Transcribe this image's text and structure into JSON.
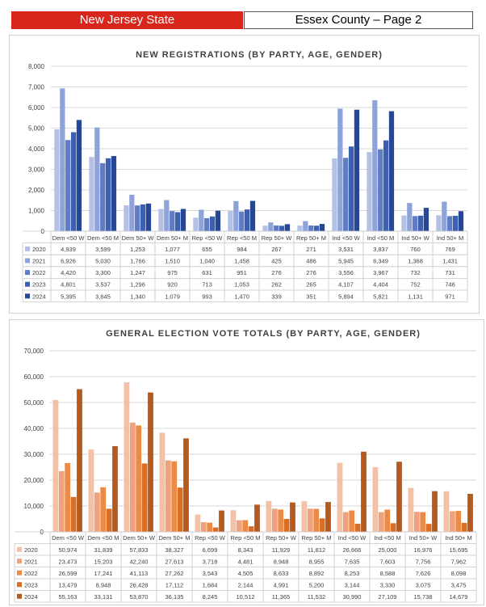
{
  "header": {
    "state": "New Jersey State",
    "county": "Essex County – Page 2"
  },
  "chart_data": [
    {
      "type": "bar",
      "title": "NEW REGISTRATIONS (BY PARTY, AGE, GENDER)",
      "categories": [
        "Dem <50 W",
        "Dem <50 M",
        "Dem 50+ W",
        "Dem 50+ M",
        "Rep <50 W",
        "Rep <50 M",
        "Rep 50+ W",
        "Rep 50+ M",
        "Ind <50 W",
        "Ind <50 M",
        "Ind 50+ W",
        "Ind 50+ M"
      ],
      "yticks": [
        "0",
        "1,000",
        "2,000",
        "3,000",
        "4,000",
        "5,000",
        "6,000",
        "7,000",
        "8,000"
      ],
      "ylim": [
        0,
        8000
      ],
      "series": [
        {
          "name": "2020",
          "color": "#b4c1e4",
          "values": [
            4939,
            3599,
            1253,
            1077,
            655,
            984,
            267,
            271,
            3531,
            3837,
            760,
            769
          ],
          "labels": [
            "4,939",
            "3,599",
            "1,253",
            "1,077",
            "655",
            "984",
            "267",
            "271",
            "3,531",
            "3,837",
            "760",
            "769"
          ]
        },
        {
          "name": "2021",
          "color": "#8ea3da",
          "values": [
            6926,
            5030,
            1766,
            1510,
            1040,
            1458,
            425,
            486,
            5945,
            6349,
            1368,
            1431
          ],
          "labels": [
            "6,926",
            "5,030",
            "1,766",
            "1,510",
            "1,040",
            "1,458",
            "425",
            "486",
            "5,945",
            "6,349",
            "1,368",
            "1,431"
          ]
        },
        {
          "name": "2022",
          "color": "#5f7cc4",
          "values": [
            4420,
            3300,
            1247,
            975,
            631,
            951,
            276,
            276,
            3556,
            3967,
            732,
            731
          ],
          "labels": [
            "4,420",
            "3,300",
            "1,247",
            "975",
            "631",
            "951",
            "276",
            "276",
            "3,556",
            "3,967",
            "732",
            "731"
          ]
        },
        {
          "name": "2023",
          "color": "#3d5fb0",
          "values": [
            4801,
            3537,
            1296,
            920,
            713,
            1053,
            262,
            265,
            4107,
            4404,
            752,
            746
          ],
          "labels": [
            "4,801",
            "3,537",
            "1,296",
            "920",
            "713",
            "1,053",
            "262",
            "265",
            "4,107",
            "4,404",
            "752",
            "746"
          ]
        },
        {
          "name": "2024",
          "color": "#264796",
          "values": [
            5395,
            3645,
            1340,
            1079,
            993,
            1470,
            339,
            351,
            5894,
            5821,
            1131,
            971
          ],
          "labels": [
            "5,395",
            "3,645",
            "1,340",
            "1,079",
            "993",
            "1,470",
            "339",
            "351",
            "5,894",
            "5,821",
            "1,131",
            "971"
          ]
        }
      ]
    },
    {
      "type": "bar",
      "title": "GENERAL ELECTION VOTE TOTALS (BY PARTY, AGE, GENDER)",
      "categories": [
        "Dem <50 W",
        "Dem <50 M",
        "Dem 50+ W",
        "Dem 50+ M",
        "Rep <50 W",
        "Rep <50 M",
        "Rep 50+ W",
        "Rep 50+ M",
        "Ind <50 W",
        "Ind <50 M",
        "Ind 50+ W",
        "Ind 50+ M"
      ],
      "yticks": [
        "0",
        "10,000",
        "20,000",
        "30,000",
        "40,000",
        "50,000",
        "60,000",
        "70,000"
      ],
      "ylim": [
        0,
        70000
      ],
      "series": [
        {
          "name": "2020",
          "color": "#f4c1a6",
          "values": [
            50974,
            31839,
            57833,
            38327,
            6699,
            8343,
            11929,
            11812,
            26666,
            25000,
            16976,
            15695
          ],
          "labels": [
            "50,974",
            "31,839",
            "57,833",
            "38,327",
            "6,699",
            "8,343",
            "11,929",
            "11,812",
            "26,666",
            "25,000",
            "16,976",
            "15,695"
          ]
        },
        {
          "name": "2021",
          "color": "#f0a27a",
          "values": [
            23473,
            15203,
            42240,
            27613,
            3718,
            4481,
            8948,
            8955,
            7635,
            7603,
            7756,
            7962
          ],
          "labels": [
            "23,473",
            "15,203",
            "42,240",
            "27,613",
            "3,718",
            "4,481",
            "8,948",
            "8,955",
            "7,635",
            "7,603",
            "7,756",
            "7,962"
          ]
        },
        {
          "name": "2022",
          "color": "#ec8a48",
          "values": [
            26599,
            17241,
            41113,
            27262,
            3543,
            4505,
            8633,
            8892,
            8253,
            8588,
            7626,
            8098
          ],
          "labels": [
            "26,599",
            "17,241",
            "41,113",
            "27,262",
            "3,543",
            "4,505",
            "8,633",
            "8,892",
            "8,253",
            "8,588",
            "7,626",
            "8,098"
          ]
        },
        {
          "name": "2023",
          "color": "#d86f24",
          "values": [
            13479,
            8948,
            26428,
            17112,
            1684,
            2144,
            4991,
            5200,
            3144,
            3330,
            3075,
            3475
          ],
          "labels": [
            "13,479",
            "8,948",
            "26,428",
            "17,112",
            "1,684",
            "2,144",
            "4,991",
            "5,200",
            "3,144",
            "3,330",
            "3,075",
            "3,475"
          ]
        },
        {
          "name": "2024",
          "color": "#b55a1c",
          "values": [
            55163,
            33131,
            53870,
            36135,
            8245,
            10512,
            11365,
            11532,
            30990,
            27109,
            15738,
            14679
          ],
          "labels": [
            "55,163",
            "33,131",
            "53,870",
            "36,135",
            "8,245",
            "10,512",
            "11,365",
            "11,532",
            "30,990",
            "27,109",
            "15,738",
            "14,679"
          ]
        }
      ]
    }
  ]
}
